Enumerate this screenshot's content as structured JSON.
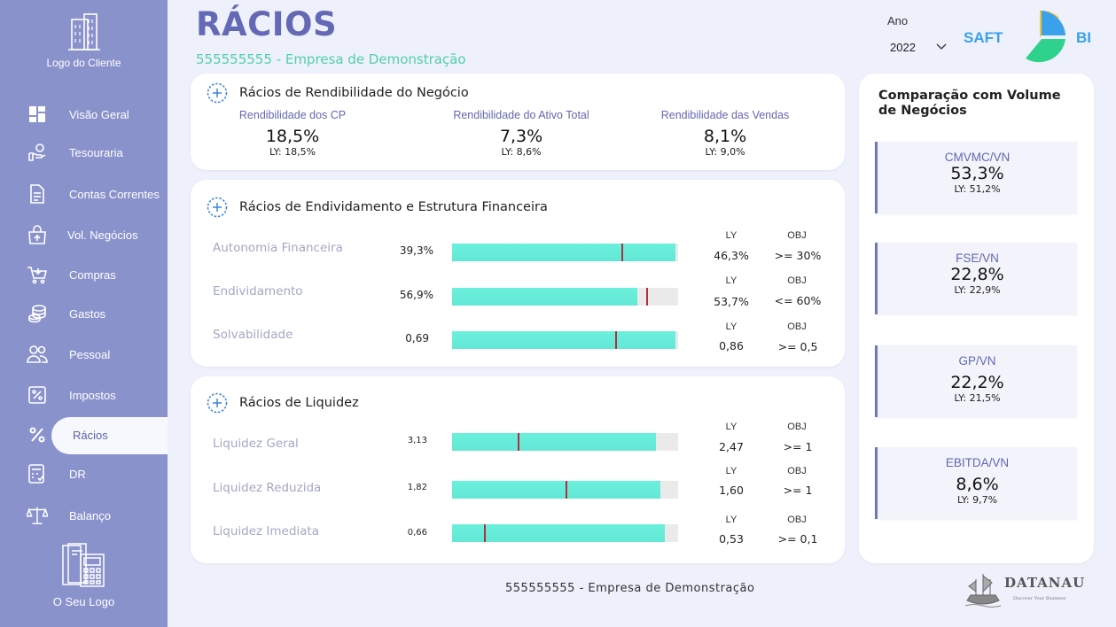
{
  "sidebar": {
    "client_logo_label": "Logo do Cliente",
    "own_logo_label": "O Seu Logo",
    "items": [
      {
        "label": "Visão Geral",
        "icon": "dashboard-icon"
      },
      {
        "label": "Tesouraria",
        "icon": "hand-coin-icon"
      },
      {
        "label": "Contas Correntes",
        "icon": "document-icon"
      },
      {
        "label": "Vol. Negócios",
        "icon": "bag-up-icon"
      },
      {
        "label": "Compras",
        "icon": "cart-icon"
      },
      {
        "label": "Gastos",
        "icon": "coins-icon"
      },
      {
        "label": "Pessoal",
        "icon": "people-icon"
      },
      {
        "label": "Impostos",
        "icon": "tax-icon"
      },
      {
        "label": "Rácios",
        "icon": "percent-icon",
        "active": true
      },
      {
        "label": "DR",
        "icon": "calculator-icon"
      },
      {
        "label": "Balanço",
        "icon": "scale-icon"
      }
    ]
  },
  "header": {
    "title": "RÁCIOS",
    "subtitle": "555555555 - Empresa de Demonstração",
    "year_label": "Ano",
    "year_value": "2022"
  },
  "rendibilidade": {
    "title": "Rácios de Rendibilidade do Negócio",
    "kpis": [
      {
        "name": "Rendibilidade dos CP",
        "value": "18,5%",
        "ly": "LY: 18,5%"
      },
      {
        "name": "Rendibilidade do Ativo Total",
        "value": "7,3%",
        "ly": "LY: 8,6%"
      },
      {
        "name": "Rendibilidade das Vendas",
        "value": "8,1%",
        "ly": "LY: 9,0%"
      }
    ]
  },
  "endividamento": {
    "title": "Rácios de Endividamento e Estrutura Financeira",
    "ly_header": "LY",
    "obj_header": "OBJ",
    "rows": [
      {
        "label": "Autonomia Financeira",
        "value": "39,3%",
        "fill": 0.99,
        "target": 0.75,
        "ly": "46,3%",
        "obj": ">= 30%"
      },
      {
        "label": "Endividamento",
        "value": "56,9%",
        "fill": 0.82,
        "target": 0.86,
        "ly": "53,7%",
        "obj": "<= 60%"
      },
      {
        "label": "Solvabilidade",
        "value": "0,69",
        "fill": 0.99,
        "target": 0.72,
        "ly": "0,86",
        "obj": ">= 0,5"
      }
    ]
  },
  "liquidez": {
    "title": "Rácios de Liquidez",
    "ly_header": "LY",
    "obj_header": "OBJ",
    "rows": [
      {
        "label": "Liquidez Geral",
        "value": "3,13",
        "fill": 0.9,
        "target": 0.29,
        "ly": "2,47",
        "obj": ">= 1"
      },
      {
        "label": "Liquidez Reduzida",
        "value": "1,82",
        "fill": 0.92,
        "target": 0.5,
        "ly": "1,60",
        "obj": ">= 1"
      },
      {
        "label": "Liquidez Imediata",
        "value": "0,66",
        "fill": 0.94,
        "target": 0.14,
        "ly": "0,53",
        "obj": ">= 0,1"
      }
    ]
  },
  "volume": {
    "title": "Comparação com Volume de Negócios",
    "cards": [
      {
        "name": "CMVMC/VN",
        "value": "53,3%",
        "ly": "LY: 51,2%"
      },
      {
        "name": "FSE/VN",
        "value": "22,8%",
        "ly": "LY: 22,9%"
      },
      {
        "name": "GP/VN",
        "value": "22,2%",
        "ly": "LY: 21,5%"
      },
      {
        "name": "EBITDA/VN",
        "value": "8,6%",
        "ly": "LY: 9,7%"
      }
    ]
  },
  "footer": {
    "company": "555555555 - Empresa de Demonstração"
  },
  "brand": {
    "saft_left": "SAFT",
    "saft_right": "BI",
    "datanau": "DATANAU",
    "datanau_tag": "Discover Your Business"
  },
  "colors": {
    "sidebar": "#8a92cc",
    "title": "#6369b4",
    "subtitle": "#4fd1a6",
    "bar": "#63e8d6",
    "target": "#b03040"
  }
}
